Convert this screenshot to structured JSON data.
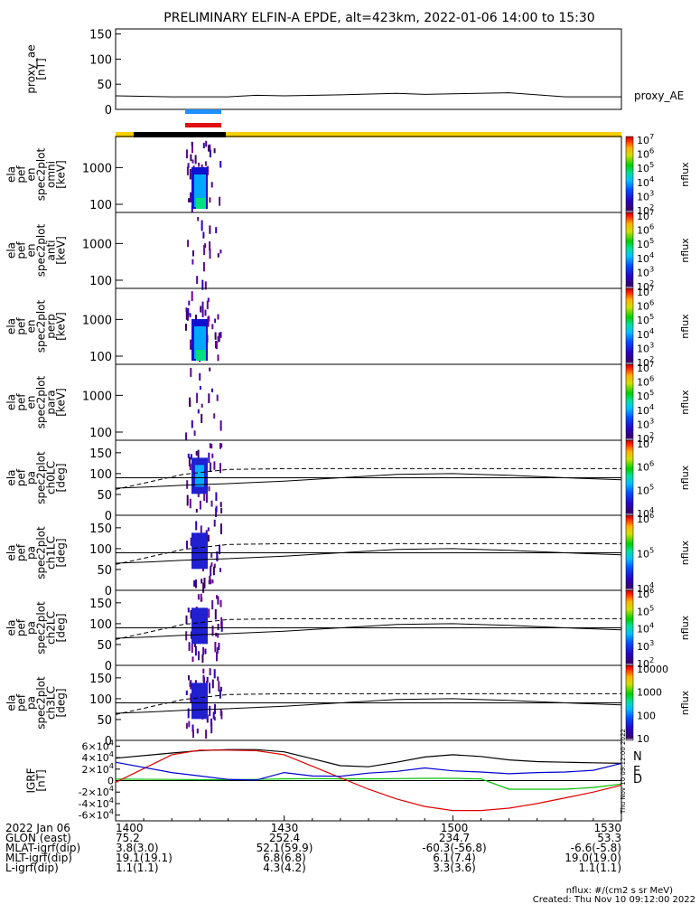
{
  "title": "PRELIMINARY ELFIN-A EPDE, alt=423km, 2022-01-06 14:00 to 15:30",
  "footer": {
    "units": "nflux: #/(cm2 s sr MeV)",
    "created": "Created: Thu Nov 10 09:12:00 2022",
    "side_stamp": "Thu Nov 10 09:12:00 2022"
  },
  "colors": {
    "background": "#ffffff",
    "line": "#000000",
    "bar_yellow": "#f5d000",
    "bar_black": "#000000",
    "bar_blue": "#1e90ff",
    "bar_red": "#e01010"
  },
  "chart_data": [
    {
      "type": "line",
      "panel": "proxy_ae",
      "ylabel": "proxy_ae [nT]",
      "legend": "proxy_AE",
      "ylim": [
        0,
        160
      ],
      "yticks": [
        "0",
        "50",
        "100",
        "150"
      ],
      "x": [
        0,
        10,
        20,
        25,
        30,
        40,
        50,
        55,
        60,
        70,
        80,
        90
      ],
      "values": [
        27,
        25,
        25,
        28,
        27,
        29,
        32,
        30,
        31,
        33,
        25,
        25
      ]
    },
    {
      "type": "heatmap",
      "panel": "omni",
      "ylabel": "ela pef en spec2plot omni [keV]",
      "scale": "log",
      "ylim": [
        60,
        7000
      ],
      "yticks": [
        "100",
        "1000"
      ],
      "zlabel": "nflux",
      "zticks": [
        "10^2",
        "10^3",
        "10^4",
        "10^5",
        "10^6",
        "10^7"
      ]
    },
    {
      "type": "heatmap",
      "panel": "anti",
      "ylabel": "ela pef en spec2plot anti [keV]",
      "scale": "log",
      "ylim": [
        60,
        7000
      ],
      "yticks": [
        "100",
        "1000"
      ],
      "zlabel": "nflux",
      "zticks": [
        "10^2",
        "10^3",
        "10^4",
        "10^5",
        "10^6",
        "10^7"
      ]
    },
    {
      "type": "heatmap",
      "panel": "perp",
      "ylabel": "ela pef en spec2plot perp [keV]",
      "scale": "log",
      "ylim": [
        60,
        7000
      ],
      "yticks": [
        "100",
        "1000"
      ],
      "zlabel": "nflux",
      "zticks": [
        "10^2",
        "10^3",
        "10^4",
        "10^5",
        "10^6",
        "10^7"
      ]
    },
    {
      "type": "heatmap",
      "panel": "para",
      "ylabel": "ela pef en spec2plot para [keV]",
      "scale": "log",
      "ylim": [
        60,
        7000
      ],
      "yticks": [
        "100",
        "1000"
      ],
      "zlabel": "nflux",
      "zticks": [
        "10^2",
        "10^3",
        "10^4",
        "10^5",
        "10^6",
        "10^7"
      ]
    },
    {
      "type": "heatmap",
      "panel": "ch0LC",
      "ylabel": "ela pef pa spec2plot ch0LC [deg]",
      "ylim": [
        0,
        180
      ],
      "yticks": [
        "0",
        "50",
        "100",
        "150"
      ],
      "zlabel": "nflux",
      "zticks": [
        "10^4",
        "10^5",
        "10^6",
        "10^7"
      ]
    },
    {
      "type": "heatmap",
      "panel": "ch1LC",
      "ylabel": "ela pef pa spec2plot ch1LC [deg]",
      "ylim": [
        0,
        180
      ],
      "yticks": [
        "0",
        "50",
        "100",
        "150"
      ],
      "zlabel": "nflux",
      "zticks": [
        "10^4",
        "10^5",
        "10^6"
      ]
    },
    {
      "type": "heatmap",
      "panel": "ch2LC",
      "ylabel": "ela pef pa spec2plot ch2LC [deg]",
      "ylim": [
        0,
        180
      ],
      "yticks": [
        "0",
        "50",
        "100",
        "150"
      ],
      "zlabel": "nflux",
      "zticks": [
        "10^2",
        "10^3",
        "10^4",
        "10^5",
        "10^6"
      ]
    },
    {
      "type": "heatmap",
      "panel": "ch3LC",
      "ylabel": "ela pef pa spec2plot ch3LC [deg]",
      "ylim": [
        0,
        180
      ],
      "yticks": [
        "0",
        "50",
        "100",
        "150"
      ],
      "zlabel": "nflux",
      "zticks": [
        "10",
        "100",
        "1000",
        "10000"
      ]
    },
    {
      "type": "line",
      "panel": "igrf",
      "ylabel": "IGRF [nT]",
      "ylim": [
        -70000,
        70000
      ],
      "yticks": [
        "-6x10^4",
        "-4x10^4",
        "-2x10^4",
        "0",
        "2x10^4",
        "4x10^4",
        "6x10^4"
      ],
      "x": [
        0,
        10,
        15,
        20,
        25,
        30,
        35,
        40,
        45,
        50,
        55,
        60,
        65,
        70,
        75,
        80,
        85,
        90
      ],
      "series": [
        {
          "name": "N",
          "values": [
            39000,
            48000,
            52000,
            54000,
            54000,
            50000,
            38000,
            26000,
            24000,
            32000,
            41000,
            45000,
            42000,
            36000,
            33000,
            32000,
            31000,
            30000
          ]
        },
        {
          "name": "E",
          "values": [
            2500,
            2000,
            1500,
            1500,
            2000,
            3000,
            3500,
            3000,
            3000,
            3500,
            4000,
            4000,
            3000,
            -15000,
            -15000,
            -15000,
            -12000,
            -6000
          ]
        },
        {
          "name": "D",
          "values": [
            -3000,
            45000,
            53000,
            53000,
            52000,
            45000,
            25000,
            5000,
            -15000,
            -32000,
            -45000,
            -52000,
            -52000,
            -48000,
            -40000,
            -30000,
            -20000,
            -8000
          ]
        }
      ],
      "extra_blue": [
        32000,
        14000,
        8000,
        2000,
        1000,
        14000,
        8000,
        7500,
        13000,
        16000,
        22000,
        17000,
        15000,
        12000,
        14000,
        15000,
        18000,
        30000
      ]
    }
  ],
  "labels": [
    {
      "name": "proxy_ae",
      "lines": [
        "proxy_ae",
        "[nT]"
      ]
    },
    {
      "name": "omni",
      "lines": [
        "ela",
        "pef",
        "en",
        "spec2plot",
        "omni",
        "[keV]"
      ]
    },
    {
      "name": "anti",
      "lines": [
        "ela",
        "pef",
        "en",
        "spec2plot",
        "anti",
        "[keV]"
      ]
    },
    {
      "name": "perp",
      "lines": [
        "ela",
        "pef",
        "en",
        "spec2plot",
        "perp",
        "[keV]"
      ]
    },
    {
      "name": "para",
      "lines": [
        "ela",
        "pef",
        "en",
        "spec2plot",
        "para",
        "[keV]"
      ]
    },
    {
      "name": "ch0LC",
      "lines": [
        "ela",
        "pef",
        "pa",
        "spec2plot",
        "ch0LC",
        "[deg]"
      ]
    },
    {
      "name": "ch1LC",
      "lines": [
        "ela",
        "pef",
        "pa",
        "spec2plot",
        "ch1LC",
        "[deg]"
      ]
    },
    {
      "name": "ch2LC",
      "lines": [
        "ela",
        "pef",
        "pa",
        "spec2plot",
        "ch2LC",
        "[deg]"
      ]
    },
    {
      "name": "ch3LC",
      "lines": [
        "ela",
        "pef",
        "pa",
        "spec2plot",
        "ch3LC",
        "[deg]"
      ]
    },
    {
      "name": "igrf",
      "lines": [
        "IGRF",
        "[nT]"
      ]
    }
  ],
  "time_axis": {
    "rows": [
      {
        "label": "2022 Jan 06",
        "values": [
          "1400",
          "1430",
          "1500",
          "1530"
        ]
      },
      {
        "label": "GLON (east)",
        "values": [
          "75.2",
          "252.4",
          "234.7",
          "53.3"
        ]
      },
      {
        "label": "MLAT-igrf(dip)",
        "values": [
          "3.8(3.0)",
          "52.1(59.9)",
          "-60.3(-56.8)",
          "-6.6(-5.8)"
        ]
      },
      {
        "label": "MLT-igrf(dip)",
        "values": [
          "19.1(19.1)",
          "6.8(6.8)",
          "6.1(7.4)",
          "19.0(19.0)"
        ]
      },
      {
        "label": "L-igrf(dip)",
        "values": [
          "1.1(1.1)",
          "4.3(4.2)",
          "3.3(3.6)",
          "1.1(1.1)"
        ]
      }
    ]
  }
}
